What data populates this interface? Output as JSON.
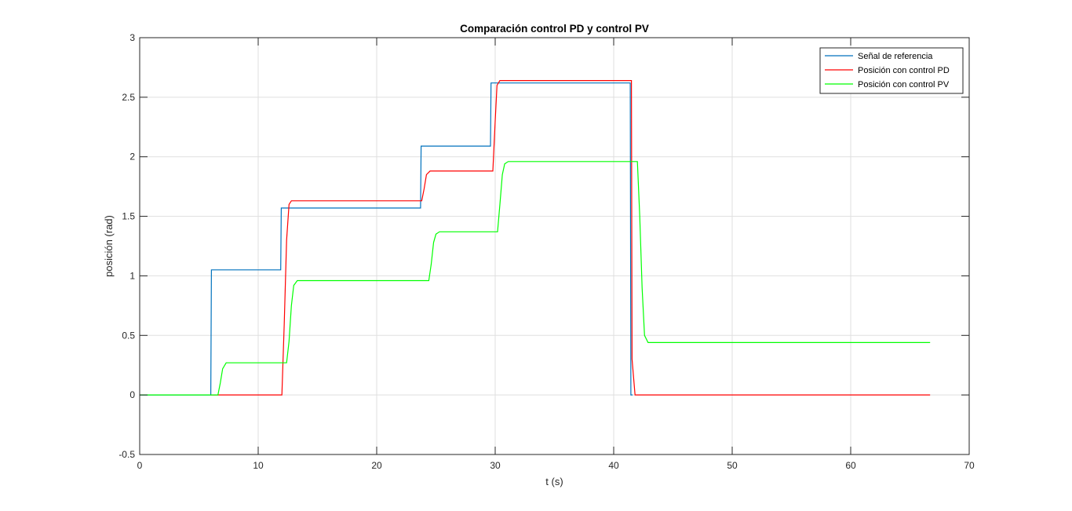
{
  "chart_data": {
    "type": "line",
    "title": "Comparación control PD y control PV",
    "xlabel": "t (s)",
    "ylabel": "posición (rad)",
    "xlim": [
      0,
      70
    ],
    "ylim": [
      -0.5,
      3
    ],
    "xticks": [
      "0",
      "10",
      "20",
      "30",
      "40",
      "50",
      "60",
      "70"
    ],
    "yticks": [
      "-0.5",
      "0",
      "0.5",
      "1",
      "1.5",
      "2",
      "2.5",
      "3"
    ],
    "grid": true,
    "legend_position": "top-right",
    "series": [
      {
        "name": "Señal de referencia",
        "color": "#0072bd",
        "x": [
          0,
          6,
          6.05,
          11.9,
          11.95,
          23.7,
          23.75,
          29.6,
          29.65,
          41.4,
          41.45,
          41.6
        ],
        "y": [
          0,
          0,
          1.05,
          1.05,
          1.57,
          1.57,
          2.09,
          2.09,
          2.62,
          2.62,
          0,
          0
        ]
      },
      {
        "name": "Posición con control PD",
        "color": "#ff0000",
        "x": [
          6,
          12.0,
          12.2,
          12.4,
          12.6,
          12.8,
          23.8,
          24.0,
          24.2,
          24.5,
          29.8,
          30.0,
          30.15,
          30.4,
          41.5,
          41.55,
          41.8,
          66.7
        ],
        "y": [
          0,
          0,
          0.6,
          1.3,
          1.6,
          1.63,
          1.63,
          1.73,
          1.85,
          1.88,
          1.88,
          2.3,
          2.6,
          2.64,
          2.64,
          0.3,
          0,
          0
        ]
      },
      {
        "name": "Posición con control PV",
        "color": "#00ff00",
        "x": [
          0,
          6.6,
          6.8,
          7.0,
          7.3,
          12.4,
          12.6,
          12.8,
          13.0,
          13.3,
          24.4,
          24.6,
          24.8,
          25.0,
          25.3,
          30.2,
          30.4,
          30.6,
          30.8,
          31.1,
          42.0,
          42.2,
          42.4,
          42.6,
          42.9,
          66.7
        ],
        "y": [
          0,
          0,
          0.1,
          0.22,
          0.27,
          0.27,
          0.45,
          0.75,
          0.92,
          0.96,
          0.96,
          1.1,
          1.28,
          1.35,
          1.37,
          1.37,
          1.6,
          1.85,
          1.94,
          1.96,
          1.96,
          1.5,
          0.9,
          0.5,
          0.44,
          0.44
        ]
      }
    ]
  }
}
